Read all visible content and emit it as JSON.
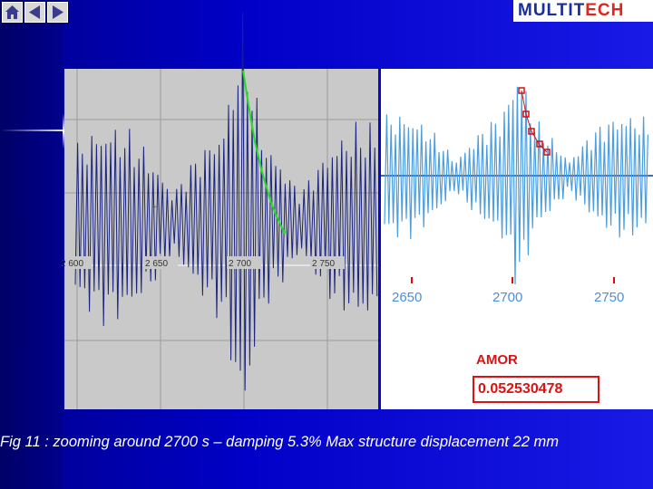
{
  "navigation": {
    "home_icon": "home-icon",
    "prev_icon": "triangle-left-icon",
    "next_icon": "triangle-right-icon"
  },
  "logo": {
    "part1": "MULTIT",
    "part2": "ECH",
    "colors": {
      "part1": "#1a2d9c",
      "part2": "#e0251b"
    }
  },
  "left_chart": {
    "x_tick_labels": [
      "2 600",
      "2 650",
      "2 700",
      "2 750"
    ],
    "signal_color": "#1a237e",
    "envelope_color": "#22dd22",
    "background": "#c9c9c9"
  },
  "right_chart": {
    "x_tick_labels": [
      "2650",
      "2700",
      "2750"
    ],
    "signal_color": "#4a9ee0",
    "marker_color": "#d01010",
    "tick_label_color": "#4a90d9"
  },
  "amor": {
    "label": "AMOR",
    "value": "0.052530478",
    "color": "#e01010"
  },
  "caption": "Fig 11 : zooming around 2700 s – damping 5.3% Max structure displacement 22 mm"
}
